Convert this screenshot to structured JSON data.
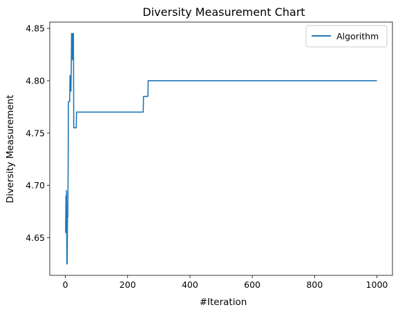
{
  "chart_data": {
    "type": "line",
    "title": "Diversity Measurement Chart",
    "xlabel": "#Iteration",
    "ylabel": "Diversity Measurement",
    "xlim": [
      -50,
      1050
    ],
    "ylim": [
      4.614,
      4.856
    ],
    "xticks": [
      0,
      200,
      400,
      600,
      800,
      1000
    ],
    "yticks": [
      4.65,
      4.7,
      4.75,
      4.8,
      4.85
    ],
    "xtick_labels": [
      "0",
      "200",
      "400",
      "600",
      "800",
      "1000"
    ],
    "ytick_labels": [
      "4.65",
      "4.70",
      "4.75",
      "4.80",
      "4.85"
    ],
    "grid": false,
    "legend_position": "top-right",
    "series": [
      {
        "name": "Algorithm",
        "color": "#1f77b4",
        "points": [
          [
            0,
            4.655
          ],
          [
            1,
            4.655
          ],
          [
            2,
            4.69
          ],
          [
            3,
            4.66
          ],
          [
            4,
            4.695
          ],
          [
            5,
            4.625
          ],
          [
            6,
            4.625
          ],
          [
            7,
            4.67
          ],
          [
            8,
            4.67
          ],
          [
            9,
            4.715
          ],
          [
            10,
            4.78
          ],
          [
            14,
            4.78
          ],
          [
            15,
            4.805
          ],
          [
            16,
            4.79
          ],
          [
            18,
            4.79
          ],
          [
            19,
            4.81
          ],
          [
            20,
            4.845
          ],
          [
            22,
            4.845
          ],
          [
            23,
            4.82
          ],
          [
            24,
            4.845
          ],
          [
            26,
            4.845
          ],
          [
            27,
            4.755
          ],
          [
            35,
            4.755
          ],
          [
            36,
            4.77
          ],
          [
            250,
            4.77
          ],
          [
            251,
            4.785
          ],
          [
            265,
            4.785
          ],
          [
            266,
            4.8
          ],
          [
            1000,
            4.8
          ]
        ]
      }
    ]
  }
}
